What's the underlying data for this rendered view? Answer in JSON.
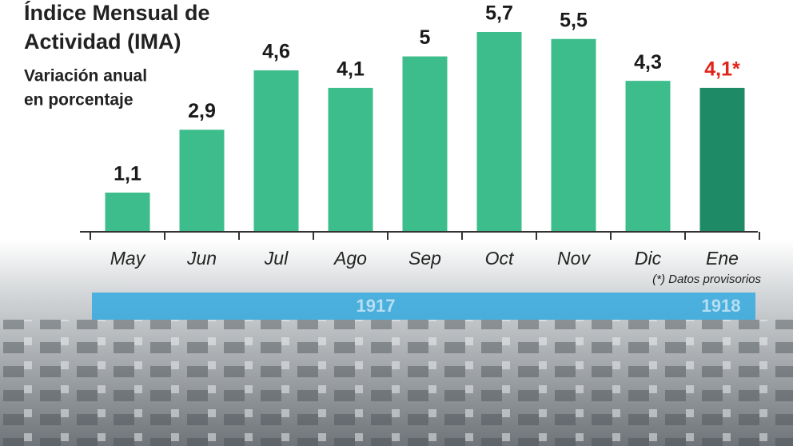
{
  "chart_data": {
    "type": "bar",
    "title_lines": [
      "Índice Mensual de",
      "Actividad (IMA)"
    ],
    "subtitle_lines": [
      "Variación anual",
      "en porcentaje"
    ],
    "categories": [
      "May",
      "Jun",
      "Jul",
      "Ago",
      "Sep",
      "Oct",
      "Nov",
      "Dic",
      "Ene"
    ],
    "values": [
      1.1,
      2.9,
      4.6,
      4.1,
      5,
      5.7,
      5.5,
      4.3,
      4.1
    ],
    "value_labels": [
      "1,1",
      "2,9",
      "4,6",
      "4,1",
      "5",
      "5,7",
      "5,5",
      "4,3",
      "4,1*"
    ],
    "colors": [
      "#3dbd8c",
      "#3dbd8c",
      "#3dbd8c",
      "#3dbd8c",
      "#3dbd8c",
      "#3dbd8c",
      "#3dbd8c",
      "#3dbd8c",
      "#1f8a66"
    ],
    "value_label_colors": [
      "#1a1a1a",
      "#1a1a1a",
      "#1a1a1a",
      "#1a1a1a",
      "#1a1a1a",
      "#1a1a1a",
      "#1a1a1a",
      "#1a1a1a",
      "#e2231a"
    ],
    "note": "(*) Datos provisorios",
    "timeline_labels": [
      "1917",
      "1918"
    ]
  }
}
